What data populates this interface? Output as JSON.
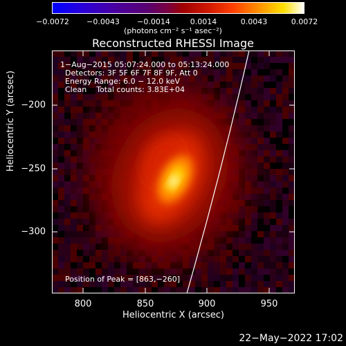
{
  "colorbar": {
    "ticks": [
      "−0.0072",
      "−0.0043",
      "−0.0014",
      "0.0014",
      "0.0043",
      "0.0072"
    ],
    "units": "(photons cm⁻² s⁻¹ asec⁻²)",
    "colors": [
      "#0000ff",
      "#5a0070",
      "#a00000",
      "#ff4000",
      "#ffe000",
      "#ffffff"
    ]
  },
  "plot": {
    "title": "Reconstructed RHESSI Image",
    "time_range": "1−Aug−2015 05:07:24.000 to 05:13:24.000",
    "detectors": "Detectors: 3F 5F 6F 7F 8F 9F, Att 0",
    "energy": "Energy Range: 6.0 − 12.0 keV",
    "clean": "Clean    Total counts: 3.83E+04",
    "peak": "Position of Peak = [863,−260]"
  },
  "chart_data": {
    "type": "heatmap",
    "title": "Reconstructed RHESSI Image",
    "xlabel": "Heliocentric X (arcsec)",
    "ylabel": "Heliocentric Y (arcsec)",
    "xlim": [
      775,
      975
    ],
    "ylim": [
      -360,
      -160
    ],
    "x_ticks": [
      "800",
      "850",
      "900",
      "950"
    ],
    "y_ticks": [
      "−200",
      "−250",
      "−300"
    ],
    "peak": [
      863,
      -260
    ],
    "limb_x_at_top": 932,
    "limb_x_at_bottom": 877
  },
  "footer": {
    "timestamp": "22−May−2022 17:02"
  }
}
